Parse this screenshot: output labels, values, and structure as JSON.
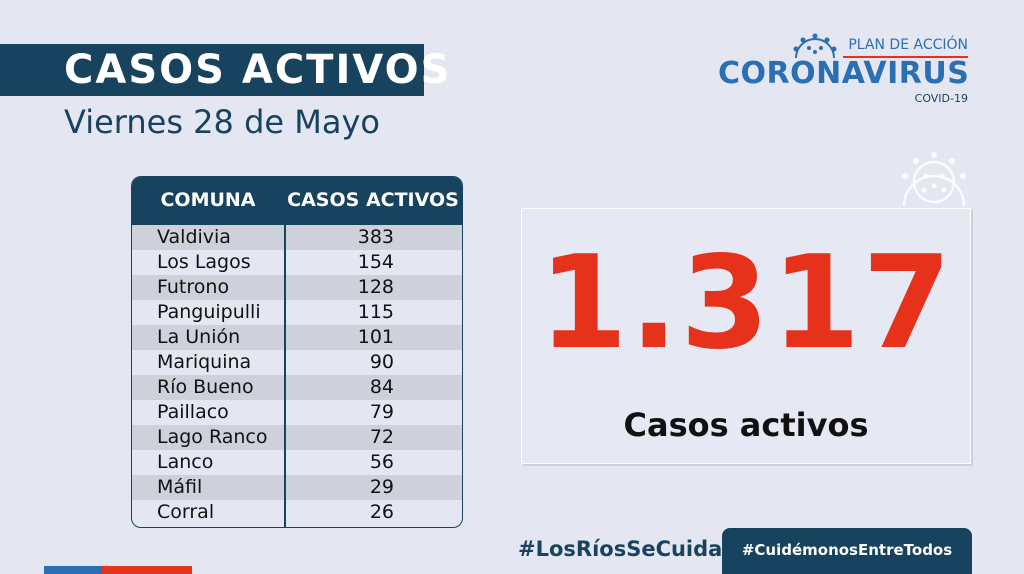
{
  "header": {
    "title": "CASOS ACTIVOS",
    "date": "Viernes 28 de Mayo"
  },
  "logo": {
    "plan": "PLAN DE ACCIÓN",
    "main": "CORONAVIRUS",
    "sub": "COVID-19"
  },
  "table": {
    "headers": [
      "COMUNA",
      "CASOS ACTIVOS"
    ],
    "rows": [
      {
        "comuna": "Valdivia",
        "casos": "383"
      },
      {
        "comuna": "Los Lagos",
        "casos": "154"
      },
      {
        "comuna": "Futrono",
        "casos": "128"
      },
      {
        "comuna": "Panguipulli",
        "casos": "115"
      },
      {
        "comuna": "La Unión",
        "casos": "101"
      },
      {
        "comuna": "Mariquina",
        "casos": "90"
      },
      {
        "comuna": "Río Bueno",
        "casos": "84"
      },
      {
        "comuna": "Paillaco",
        "casos": "79"
      },
      {
        "comuna": "Lago Ranco",
        "casos": "72"
      },
      {
        "comuna": "Lanco",
        "casos": "56"
      },
      {
        "comuna": "Máfil",
        "casos": "29"
      },
      {
        "comuna": "Corral",
        "casos": "26"
      }
    ]
  },
  "total": {
    "value": "1.317",
    "label": "Casos activos"
  },
  "footer": {
    "hashtag1": "#LosRíosSeCuida",
    "hashtag2": "#CuidémonosEntreTodos"
  },
  "colors": {
    "navy": "#17435f",
    "red": "#e6321b",
    "blue": "#2a6fb4",
    "background": "#e4e7f2"
  },
  "icons": [
    "virus-icon",
    "virus-icon"
  ]
}
